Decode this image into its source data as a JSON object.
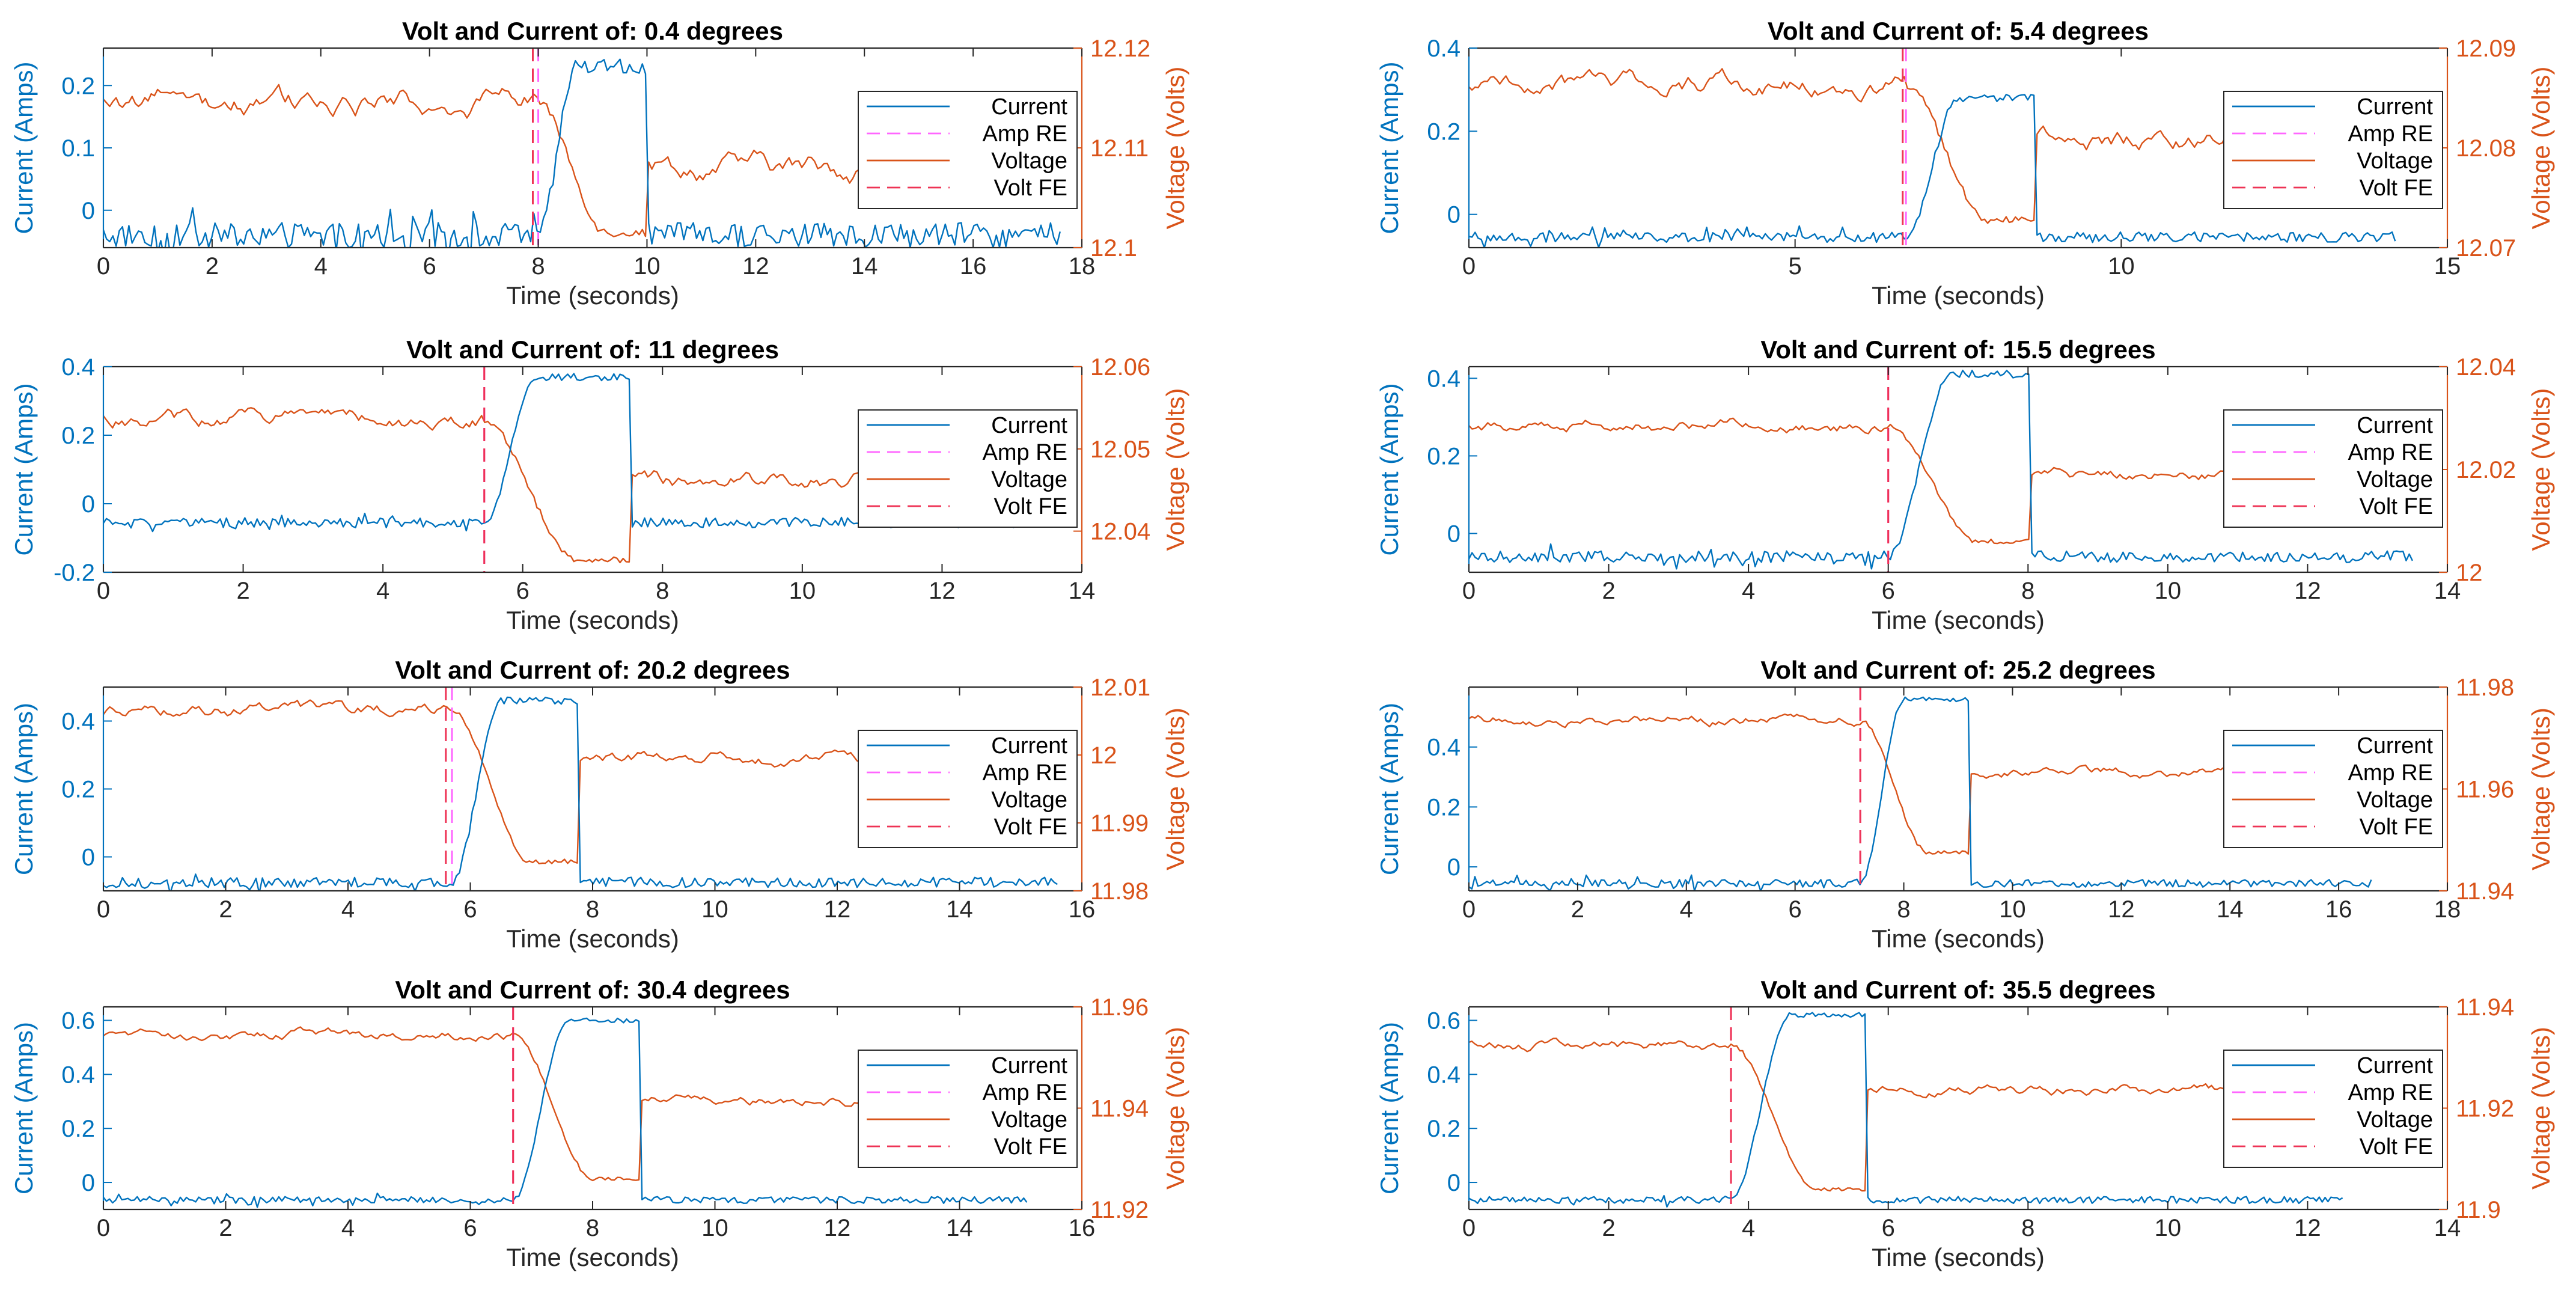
{
  "figure": {
    "background": "#ffffff"
  },
  "colors": {
    "current": "#0072BD",
    "voltage": "#D95319",
    "amp_re": "#FF66FF",
    "volt_fe": "#EE3355",
    "axis": "#262626"
  },
  "chart_data": [
    {
      "type": "line",
      "title": "Volt and Current of: 0.4 degrees",
      "xlabel": "Time (seconds)",
      "ylabel_left": "Current (Amps)",
      "ylabel_right": "Voltage (Volts)",
      "xlim": [
        0,
        18
      ],
      "xticks": [
        0,
        2,
        4,
        6,
        8,
        10,
        12,
        14,
        16,
        18
      ],
      "xtick_labels": [
        "0",
        "2",
        "4",
        "6",
        "8",
        "10",
        "12",
        "14",
        "16",
        "18"
      ],
      "ylim_left": [
        -0.06,
        0.26
      ],
      "yticks_left": [
        0,
        0.1,
        0.2
      ],
      "ytick_labels_left": [
        "0",
        "0.1",
        "0.2"
      ],
      "ylim_right": [
        12.1,
        12.12
      ],
      "yticks_right": [
        12.1,
        12.11,
        12.12
      ],
      "ytick_labels_right": [
        "12.1",
        "12.11",
        "12.12"
      ],
      "duration": 17.6,
      "rise_start": 8.0,
      "rise_end": 8.7,
      "fall_time": 10.0,
      "current_base": -0.04,
      "current_peak": 0.23,
      "current_noise": 0.04,
      "voltage_pre": 12.1145,
      "voltage_drop": 12.1015,
      "voltage_post": 12.108,
      "voltage_noise": 0.0015,
      "amp_re": 8.0,
      "volt_fe": 7.9,
      "legend": [
        "Current",
        "Amp RE",
        "Voltage",
        "Volt FE"
      ]
    },
    {
      "type": "line",
      "title": "Volt and Current of: 5.4 degrees",
      "xlabel": "Time (seconds)",
      "ylabel_left": "Current (Amps)",
      "ylabel_right": "Voltage (Volts)",
      "xlim": [
        0,
        15
      ],
      "xticks": [
        0,
        5,
        10,
        15
      ],
      "xtick_labels": [
        "0",
        "5",
        "10",
        "15"
      ],
      "ylim_left": [
        -0.08,
        0.4
      ],
      "yticks_left": [
        0,
        0.2,
        0.4
      ],
      "ytick_labels_left": [
        "0",
        "0.2",
        "0.4"
      ],
      "ylim_right": [
        12.07,
        12.09
      ],
      "yticks_right": [
        12.07,
        12.08,
        12.09
      ],
      "ytick_labels_right": [
        "12.07",
        "12.08",
        "12.09"
      ],
      "duration": 14.2,
      "rise_start": 6.7,
      "rise_end": 7.5,
      "fall_time": 8.7,
      "current_base": -0.055,
      "current_peak": 0.28,
      "current_noise": 0.025,
      "voltage_pre": 12.0863,
      "voltage_drop": 12.0728,
      "voltage_post": 12.0805,
      "voltage_noise": 0.0012,
      "amp_re": 6.7,
      "volt_fe": 6.65,
      "legend": [
        "Current",
        "Amp RE",
        "Voltage",
        "Volt FE"
      ]
    },
    {
      "type": "line",
      "title": "Volt and Current of: 11 degrees",
      "xlabel": "Time (seconds)",
      "ylabel_left": "Current (Amps)",
      "ylabel_right": "Voltage (Volts)",
      "xlim": [
        0,
        14
      ],
      "xticks": [
        0,
        2,
        4,
        6,
        8,
        10,
        12,
        14
      ],
      "xtick_labels": [
        "0",
        "2",
        "4",
        "6",
        "8",
        "10",
        "12",
        "14"
      ],
      "ylim_left": [
        -0.2,
        0.4
      ],
      "yticks_left": [
        -0.2,
        0,
        0.2,
        0.4
      ],
      "ytick_labels_left": [
        "-0.2",
        "0",
        "0.2",
        "0.4"
      ],
      "ylim_right": [
        12.035,
        12.06
      ],
      "yticks_right": [
        12.04,
        12.05,
        12.06
      ],
      "ytick_labels_right": [
        "12.04",
        "12.05",
        "12.06"
      ],
      "duration": 13.2,
      "rise_start": 5.45,
      "rise_end": 6.2,
      "fall_time": 7.55,
      "current_base": -0.055,
      "current_peak": 0.37,
      "current_noise": 0.03,
      "voltage_pre": 12.0535,
      "voltage_drop": 12.0365,
      "voltage_post": 12.046,
      "voltage_noise": 0.0012,
      "amp_re": 5.45,
      "volt_fe": 5.45,
      "legend": [
        "Current",
        "Amp RE",
        "Voltage",
        "Volt FE"
      ]
    },
    {
      "type": "line",
      "title": "Volt and Current of: 15.5 degrees",
      "xlabel": "Time (seconds)",
      "ylabel_left": "Current (Amps)",
      "ylabel_right": "Voltage (Volts)",
      "xlim": [
        0,
        14
      ],
      "xticks": [
        0,
        2,
        4,
        6,
        8,
        10,
        12,
        14
      ],
      "xtick_labels": [
        "0",
        "2",
        "4",
        "6",
        "8",
        "10",
        "12",
        "14"
      ],
      "ylim_left": [
        -0.1,
        0.43
      ],
      "yticks_left": [
        0,
        0.2,
        0.4
      ],
      "ytick_labels_left": [
        "0",
        "0.2",
        "0.4"
      ],
      "ylim_right": [
        12.0,
        12.04
      ],
      "yticks_right": [
        12.0,
        12.02,
        12.04
      ],
      "ytick_labels_right": [
        "12",
        "12.02",
        "12.04"
      ],
      "duration": 13.5,
      "rise_start": 6.0,
      "rise_end": 6.9,
      "fall_time": 8.05,
      "current_base": -0.06,
      "current_peak": 0.41,
      "current_noise": 0.03,
      "voltage_pre": 12.0285,
      "voltage_drop": 12.006,
      "voltage_post": 12.019,
      "voltage_noise": 0.0015,
      "amp_re": 6.0,
      "volt_fe": 6.0,
      "legend": [
        "Current",
        "Amp RE",
        "Voltage",
        "Volt FE"
      ]
    },
    {
      "type": "line",
      "title": "Volt and Current of: 20.2 degrees",
      "xlabel": "Time (seconds)",
      "ylabel_left": "Current (Amps)",
      "ylabel_right": "Voltage (Volts)",
      "xlim": [
        0,
        16
      ],
      "xticks": [
        0,
        2,
        4,
        6,
        8,
        10,
        12,
        14,
        16
      ],
      "xtick_labels": [
        "0",
        "2",
        "4",
        "6",
        "8",
        "10",
        "12",
        "14",
        "16"
      ],
      "ylim_left": [
        -0.1,
        0.5
      ],
      "yticks_left": [
        0,
        0.2,
        0.4
      ],
      "ytick_labels_left": [
        "0",
        "0.2",
        "0.4"
      ],
      "ylim_right": [
        11.98,
        12.01
      ],
      "yticks_right": [
        11.98,
        11.99,
        12.0,
        12.01
      ],
      "ytick_labels_right": [
        "11.98",
        "11.99",
        "12",
        "12.01"
      ],
      "duration": 15.6,
      "rise_start": 5.7,
      "rise_end": 6.5,
      "fall_time": 7.75,
      "current_base": -0.075,
      "current_peak": 0.46,
      "current_noise": 0.03,
      "voltage_pre": 12.0064,
      "voltage_drop": 11.9843,
      "voltage_post": 11.9995,
      "voltage_noise": 0.0012,
      "amp_re": 5.7,
      "volt_fe": 5.6,
      "legend": [
        "Current",
        "Amp RE",
        "Voltage",
        "Volt FE"
      ]
    },
    {
      "type": "line",
      "title": "Volt and Current of: 25.2 degrees",
      "xlabel": "Time (seconds)",
      "ylabel_left": "Current (Amps)",
      "ylabel_right": "Voltage (Volts)",
      "xlim": [
        0,
        18
      ],
      "xticks": [
        0,
        2,
        4,
        6,
        8,
        10,
        12,
        14,
        16,
        18
      ],
      "xtick_labels": [
        "0",
        "2",
        "4",
        "6",
        "8",
        "10",
        "12",
        "14",
        "16",
        "18"
      ],
      "ylim_left": [
        -0.08,
        0.6
      ],
      "yticks_left": [
        0,
        0.2,
        0.4
      ],
      "ytick_labels_left": [
        "0",
        "0.2",
        "0.4"
      ],
      "ylim_right": [
        11.94,
        11.98
      ],
      "yticks_right": [
        11.94,
        11.96,
        11.98
      ],
      "ytick_labels_right": [
        "11.94",
        "11.96",
        "11.98"
      ],
      "duration": 16.6,
      "rise_start": 7.2,
      "rise_end": 8.0,
      "fall_time": 9.2,
      "current_base": -0.055,
      "current_peak": 0.56,
      "current_noise": 0.025,
      "voltage_pre": 11.9735,
      "voltage_drop": 11.9475,
      "voltage_post": 11.9635,
      "voltage_noise": 0.0012,
      "amp_re": 7.2,
      "volt_fe": 7.2,
      "legend": [
        "Current",
        "Amp RE",
        "Voltage",
        "Volt FE"
      ]
    },
    {
      "type": "line",
      "title": "Volt and Current of: 30.4 degrees",
      "xlabel": "Time (seconds)",
      "ylabel_left": "Current (Amps)",
      "ylabel_right": "Voltage (Volts)",
      "xlim": [
        0,
        16
      ],
      "xticks": [
        0,
        2,
        4,
        6,
        8,
        10,
        12,
        14,
        16
      ],
      "xtick_labels": [
        "0",
        "2",
        "4",
        "6",
        "8",
        "10",
        "12",
        "14",
        "16"
      ],
      "ylim_left": [
        -0.1,
        0.65
      ],
      "yticks_left": [
        0,
        0.2,
        0.4,
        0.6
      ],
      "ytick_labels_left": [
        "0",
        "0.2",
        "0.4",
        "0.6"
      ],
      "ylim_right": [
        11.92,
        11.96
      ],
      "yticks_right": [
        11.92,
        11.94,
        11.96
      ],
      "ytick_labels_right": [
        "11.92",
        "11.94",
        "11.96"
      ],
      "duration": 15.1,
      "rise_start": 6.7,
      "rise_end": 7.6,
      "fall_time": 8.8,
      "current_base": -0.065,
      "current_peak": 0.6,
      "current_noise": 0.025,
      "voltage_pre": 11.9545,
      "voltage_drop": 11.926,
      "voltage_post": 11.9415,
      "voltage_noise": 0.0012,
      "amp_re": 6.7,
      "volt_fe": 6.7,
      "legend": [
        "Current",
        "Amp RE",
        "Voltage",
        "Volt FE"
      ]
    },
    {
      "type": "line",
      "title": "Volt and Current of: 35.5 degrees",
      "xlabel": "Time (seconds)",
      "ylabel_left": "Current (Amps)",
      "ylabel_right": "Voltage (Volts)",
      "xlim": [
        0,
        14
      ],
      "xticks": [
        0,
        2,
        4,
        6,
        8,
        10,
        12,
        14
      ],
      "xtick_labels": [
        "0",
        "2",
        "4",
        "6",
        "8",
        "10",
        "12",
        "14"
      ],
      "ylim_left": [
        -0.1,
        0.65
      ],
      "yticks_left": [
        0,
        0.2,
        0.4,
        0.6
      ],
      "ytick_labels_left": [
        "0",
        "0.2",
        "0.4",
        "0.6"
      ],
      "ylim_right": [
        11.9,
        11.94
      ],
      "yticks_right": [
        11.9,
        11.92,
        11.94
      ],
      "ytick_labels_right": [
        "11.9",
        "11.92",
        "11.94"
      ],
      "duration": 12.5,
      "rise_start": 3.75,
      "rise_end": 4.6,
      "fall_time": 5.7,
      "current_base": -0.065,
      "current_peak": 0.62,
      "current_noise": 0.025,
      "voltage_pre": 11.9325,
      "voltage_drop": 11.904,
      "voltage_post": 11.9235,
      "voltage_noise": 0.0012,
      "amp_re": 3.75,
      "volt_fe": 3.75,
      "legend": [
        "Current",
        "Amp RE",
        "Voltage",
        "Volt FE"
      ]
    }
  ]
}
